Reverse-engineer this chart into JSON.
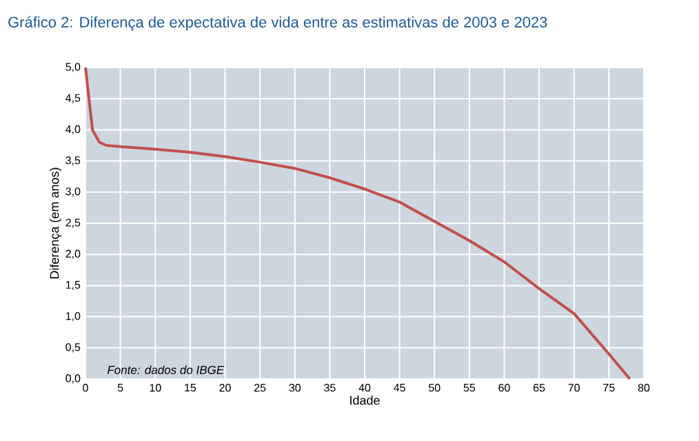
{
  "chart_data": {
    "type": "line",
    "title": "Gráfico 2: Diferença de expectativa de vida entre as estimativas de 2003 e 2023",
    "xlabel": "Idade",
    "ylabel": "Diferença (em anos)",
    "annotations": [
      "*Fonte: dados do IBGE*"
    ],
    "series": [
      {
        "color": "#c0504d",
        "x": [
          0,
          1,
          2,
          3,
          5,
          10,
          15,
          20,
          25,
          30,
          35,
          40,
          45,
          50,
          55,
          60,
          65,
          70,
          75,
          78
        ],
        "values": [
          5.0,
          4.0,
          3.8,
          3.75,
          3.73,
          3.69,
          3.64,
          3.57,
          3.48,
          3.38,
          3.23,
          3.05,
          2.84,
          2.53,
          2.22,
          1.88,
          1.45,
          1.05,
          0.4,
          0.0
        ]
      }
    ],
    "xlim": [
      0,
      80
    ],
    "ylim": [
      0,
      5
    ],
    "xticks": [
      0,
      5,
      10,
      15,
      20,
      25,
      30,
      35,
      40,
      45,
      50,
      55,
      60,
      65,
      70,
      75,
      80
    ],
    "yticks": [
      {
        "value": 0,
        "label": "0,0"
      },
      {
        "value": 0.5,
        "label": "0,5"
      },
      {
        "value": 1,
        "label": "1,0"
      },
      {
        "value": 1.5,
        "label": "1,5"
      },
      {
        "value": 2,
        "label": "2,0"
      },
      {
        "value": 2.5,
        "label": "2,5"
      },
      {
        "value": 3,
        "label": "3,0"
      },
      {
        "value": 3.5,
        "label": "3,5"
      },
      {
        "value": 4,
        "label": "4,0"
      },
      {
        "value": 4.5,
        "label": "4,5"
      },
      {
        "value": 5,
        "label": "5,0"
      }
    ],
    "grid": true,
    "marker": "none",
    "line_style": "solid"
  }
}
